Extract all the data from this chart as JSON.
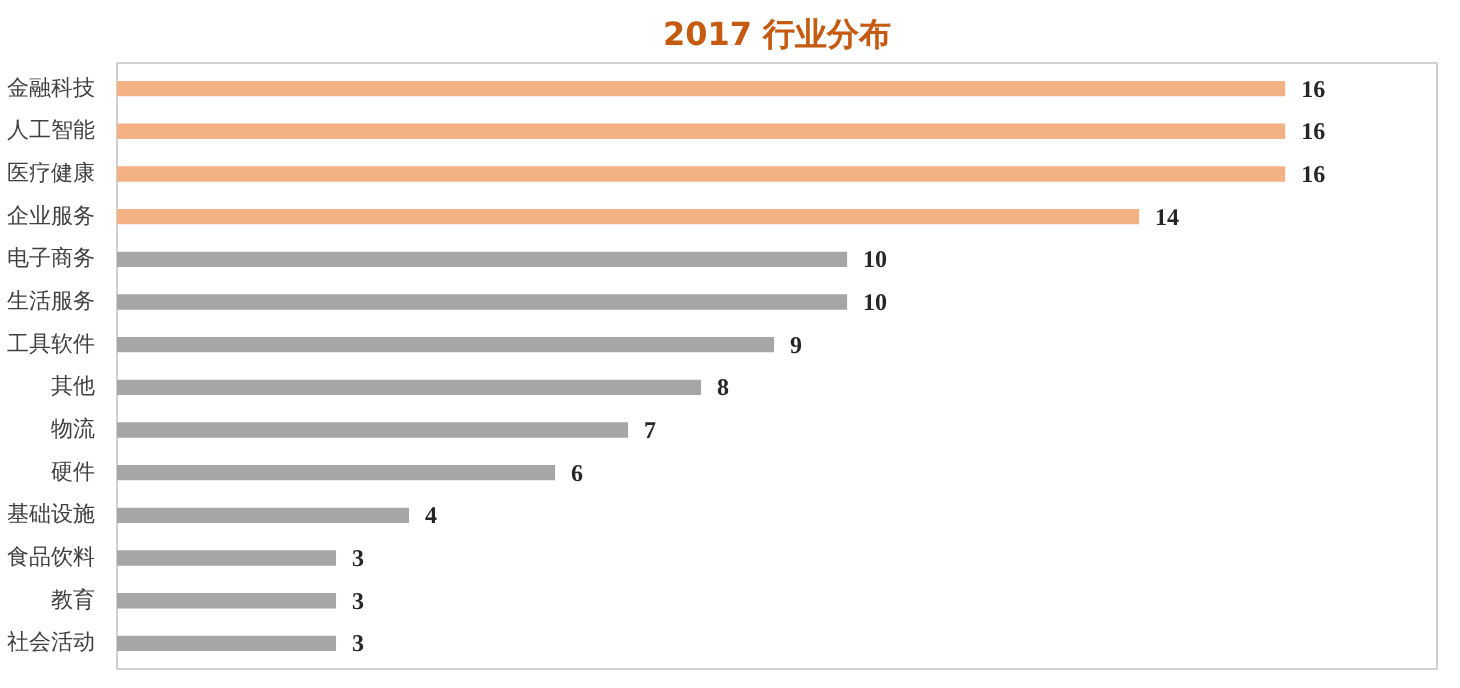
{
  "chart_data": {
    "type": "bar",
    "orientation": "horizontal",
    "title": "2017 行业分布",
    "categories": [
      "金融科技",
      "人工智能",
      "医疗健康",
      "企业服务",
      "电子商务",
      "生活服务",
      "工具软件",
      "其他",
      "物流",
      "硬件",
      "基础设施",
      "食品饮料",
      "教育",
      "社会活动"
    ],
    "values": [
      16,
      16,
      16,
      14,
      10,
      10,
      9,
      8,
      7,
      6,
      4,
      3,
      3,
      3
    ],
    "colors": [
      "#f4b183",
      "#f4b183",
      "#f4b183",
      "#f4b183",
      "#a6a6a6",
      "#a6a6a6",
      "#a6a6a6",
      "#a6a6a6",
      "#a6a6a6",
      "#a6a6a6",
      "#a6a6a6",
      "#a6a6a6",
      "#a6a6a6",
      "#a6a6a6"
    ],
    "data_labels": true,
    "grid": false
  }
}
